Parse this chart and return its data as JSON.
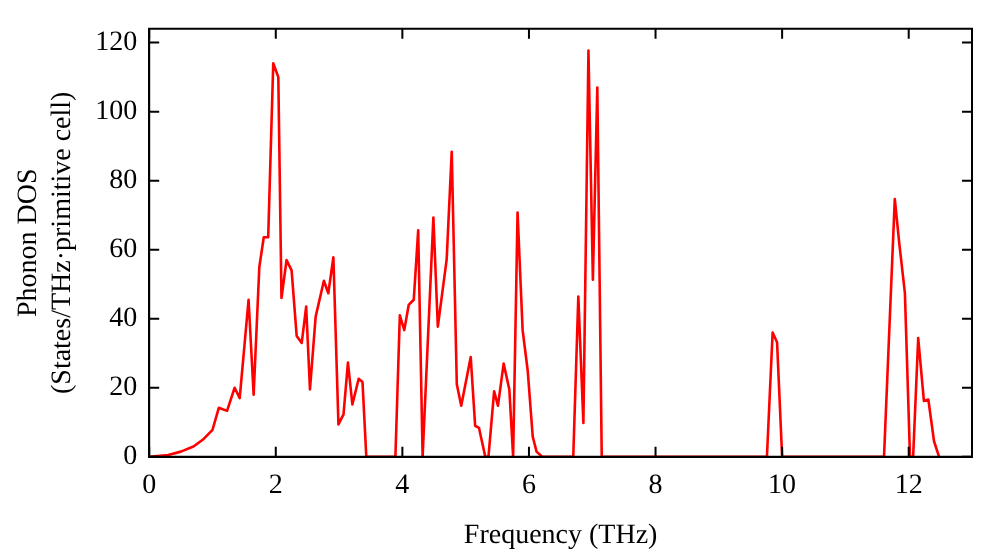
{
  "chart_data": {
    "type": "line",
    "xlabel": "Frequency (THz)",
    "ylabel": "Phonon DOS\n(States/THz·primitive cell)",
    "x": [
      0,
      0.3,
      0.5,
      0.7,
      0.85,
      1.0,
      1.1,
      1.23,
      1.35,
      1.43,
      1.57,
      1.65,
      1.74,
      1.81,
      1.88,
      1.96,
      2.04,
      2.09,
      2.17,
      2.25,
      2.33,
      2.41,
      2.48,
      2.54,
      2.63,
      2.76,
      2.83,
      2.91,
      2.99,
      3.07,
      3.14,
      3.21,
      3.31,
      3.37,
      3.43,
      3.89,
      3.96,
      4.03,
      4.1,
      4.18,
      4.25,
      4.32,
      4.49,
      4.56,
      4.7,
      4.78,
      4.86,
      4.93,
      5.08,
      5.15,
      5.21,
      5.31,
      5.36,
      5.45,
      5.51,
      5.6,
      5.69,
      5.75,
      5.82,
      5.9,
      5.98,
      6.06,
      6.12,
      6.21,
      6.7,
      6.78,
      6.86,
      6.94,
      7.01,
      7.08,
      7.15,
      9.76,
      9.85,
      9.92,
      10.0,
      11.61,
      11.78,
      11.85,
      11.94,
      12.02,
      12.07,
      12.15,
      12.24,
      12.31,
      12.4,
      12.48
    ],
    "series": [
      {
        "color": "#ff0000",
        "values": [
          0,
          0.5,
          1.5,
          3,
          5,
          7.8,
          14.2,
          13.3,
          20,
          17,
          45.5,
          18,
          55,
          63.6,
          63.6,
          114,
          110,
          46,
          57,
          54,
          35,
          33,
          43.5,
          19.5,
          40.6,
          51,
          47.4,
          57.8,
          9.4,
          12.3,
          27.3,
          15.2,
          22.6,
          21.7,
          0,
          0,
          41,
          36.7,
          44,
          45.5,
          65.6,
          0,
          69.3,
          37.7,
          57.2,
          88.4,
          21,
          14.8,
          28.9,
          9,
          8.4,
          0,
          0,
          19,
          14.8,
          27,
          19.5,
          0,
          70.8,
          36.7,
          25,
          5.8,
          1.5,
          0,
          0,
          46.4,
          9.8,
          117.7,
          51.3,
          107,
          0,
          0,
          36,
          33.2,
          0,
          0,
          74.7,
          62,
          47.4,
          0,
          0,
          34.4,
          16.2,
          16.6,
          4.5,
          0
        ]
      }
    ],
    "xlim": [
      0,
      13
    ],
    "ylim": [
      0,
      124
    ],
    "xticks": [
      0,
      2,
      4,
      6,
      8,
      10,
      12
    ],
    "yticks": [
      0,
      20,
      40,
      60,
      80,
      100,
      120
    ],
    "grid": false,
    "legend": false,
    "marker": "none",
    "line_style": "solid"
  }
}
